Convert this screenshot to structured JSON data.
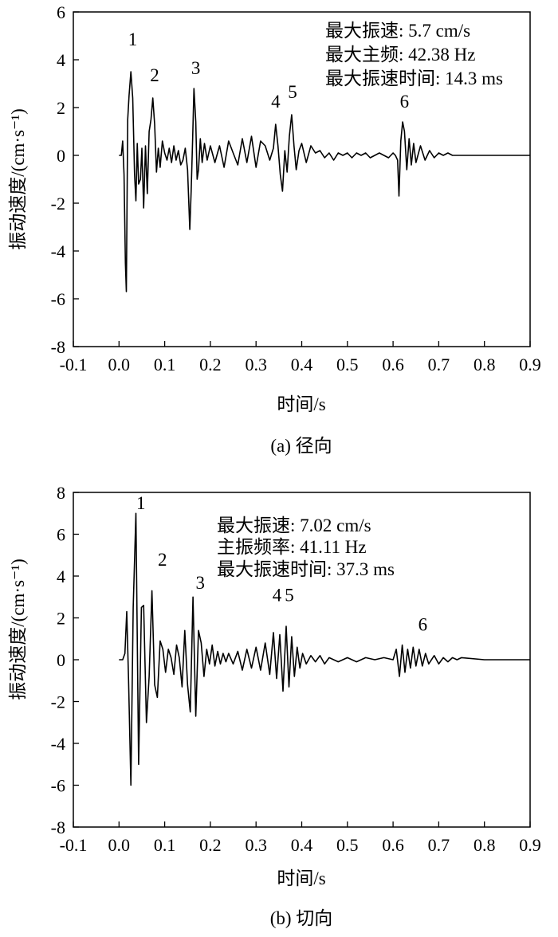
{
  "chart_data": [
    {
      "type": "line",
      "caption": "(a) 径向",
      "xlabel": "时间/s",
      "ylabel": "振动速度/(cm·s⁻¹)",
      "xlim": [
        -0.1,
        0.9
      ],
      "ylim": [
        -8,
        6
      ],
      "xticks": [
        "-0.1",
        "0.0",
        "0.1",
        "0.2",
        "0.3",
        "0.4",
        "0.5",
        "0.6",
        "0.7",
        "0.8",
        "0.9"
      ],
      "yticks": [
        "6",
        "4",
        "2",
        "0",
        "-2",
        "-4",
        "-6",
        "-8"
      ],
      "grid": false,
      "annotations": [
        "最大振速: 5.7 cm/s",
        "最大主频: 42.38 Hz",
        "最大振速时间: 14.3 ms"
      ],
      "peak_labels": [
        {
          "text": "1",
          "x": 0.03,
          "y": 4.6
        },
        {
          "text": "2",
          "x": 0.078,
          "y": 3.1
        },
        {
          "text": "3",
          "x": 0.168,
          "y": 3.4
        },
        {
          "text": "4",
          "x": 0.343,
          "y": 2.0
        },
        {
          "text": "5",
          "x": 0.38,
          "y": 2.4
        },
        {
          "text": "6",
          "x": 0.625,
          "y": 2.0
        }
      ],
      "series": [
        {
          "x": [
            0.0,
            0.005,
            0.008,
            0.011,
            0.014,
            0.016,
            0.019,
            0.022,
            0.026,
            0.03,
            0.034,
            0.037,
            0.04,
            0.043,
            0.047,
            0.05,
            0.054,
            0.058,
            0.062,
            0.066,
            0.07,
            0.074,
            0.078,
            0.082,
            0.086,
            0.09,
            0.095,
            0.1,
            0.105,
            0.11,
            0.115,
            0.12,
            0.125,
            0.13,
            0.135,
            0.14,
            0.145,
            0.15,
            0.155,
            0.158,
            0.161,
            0.164,
            0.168,
            0.171,
            0.174,
            0.178,
            0.182,
            0.187,
            0.193,
            0.2,
            0.21,
            0.22,
            0.23,
            0.24,
            0.25,
            0.26,
            0.27,
            0.28,
            0.29,
            0.3,
            0.31,
            0.32,
            0.33,
            0.338,
            0.343,
            0.348,
            0.353,
            0.358,
            0.363,
            0.368,
            0.373,
            0.378,
            0.383,
            0.388,
            0.394,
            0.4,
            0.41,
            0.42,
            0.43,
            0.44,
            0.45,
            0.46,
            0.47,
            0.48,
            0.49,
            0.5,
            0.51,
            0.52,
            0.53,
            0.54,
            0.55,
            0.56,
            0.57,
            0.58,
            0.59,
            0.6,
            0.605,
            0.61,
            0.613,
            0.617,
            0.621,
            0.625,
            0.63,
            0.635,
            0.64,
            0.645,
            0.65,
            0.66,
            0.67,
            0.68,
            0.69,
            0.7,
            0.71,
            0.72,
            0.73,
            0.74,
            0.75,
            0.8,
            0.85,
            0.9
          ],
          "values": [
            0.0,
            0.0,
            0.6,
            -0.8,
            -4.5,
            -5.7,
            1.5,
            2.5,
            3.5,
            2.4,
            -0.8,
            -1.9,
            0.5,
            -1.2,
            -1.0,
            0.3,
            -2.2,
            0.4,
            -1.6,
            1.0,
            1.5,
            2.4,
            1.3,
            -0.7,
            0.3,
            -0.5,
            0.6,
            0.1,
            -0.2,
            0.3,
            -0.3,
            0.4,
            -0.2,
            0.2,
            -0.4,
            -0.2,
            0.3,
            -0.6,
            -3.1,
            -1.5,
            0.6,
            2.8,
            1.4,
            -1.0,
            -0.6,
            0.7,
            -0.3,
            0.5,
            -0.2,
            0.4,
            -0.3,
            0.4,
            -0.5,
            0.6,
            0.1,
            -0.4,
            0.7,
            -0.3,
            0.8,
            -0.5,
            0.6,
            0.4,
            -0.2,
            0.3,
            1.3,
            0.4,
            -0.8,
            -1.5,
            0.2,
            -0.7,
            0.8,
            1.7,
            0.4,
            -0.6,
            0.2,
            0.5,
            -0.3,
            0.4,
            0.1,
            0.2,
            -0.1,
            0.1,
            -0.2,
            0.1,
            0.0,
            0.1,
            -0.1,
            0.1,
            0.0,
            0.1,
            -0.1,
            0.0,
            0.1,
            0.0,
            -0.1,
            0.1,
            0.0,
            -0.2,
            -1.7,
            0.6,
            1.4,
            1.0,
            -0.6,
            0.7,
            -0.4,
            0.5,
            -0.3,
            0.4,
            -0.2,
            0.2,
            -0.1,
            0.1,
            0.0,
            0.1,
            0.0,
            0.0,
            0.0,
            0.0,
            0.0,
            0.0
          ]
        }
      ]
    },
    {
      "type": "line",
      "caption": "(b) 切向",
      "xlabel": "时间/s",
      "ylabel": "振动速度/(cm·s⁻¹)",
      "xlim": [
        -0.1,
        0.9
      ],
      "ylim": [
        -8,
        8
      ],
      "xticks": [
        "-0.1",
        "0.0",
        "0.1",
        "0.2",
        "0.3",
        "0.4",
        "0.5",
        "0.6",
        "0.7",
        "0.8",
        "0.9"
      ],
      "yticks": [
        "8",
        "6",
        "4",
        "2",
        "0",
        "-2",
        "-4",
        "-6",
        "-8"
      ],
      "grid": false,
      "annotations": [
        "最大振速: 7.02 cm/s",
        "主振频率: 41.11 Hz",
        "最大振速时间: 37.3 ms"
      ],
      "peak_labels": [
        {
          "text": "1",
          "x": 0.048,
          "y": 7.2
        },
        {
          "text": "2",
          "x": 0.095,
          "y": 4.5
        },
        {
          "text": "3",
          "x": 0.178,
          "y": 3.4
        },
        {
          "text": "4",
          "x": 0.346,
          "y": 2.8
        },
        {
          "text": "5",
          "x": 0.373,
          "y": 2.8
        },
        {
          "text": "6",
          "x": 0.665,
          "y": 1.4
        }
      ],
      "series": [
        {
          "x": [
            0.0,
            0.008,
            0.013,
            0.017,
            0.021,
            0.026,
            0.031,
            0.037,
            0.043,
            0.049,
            0.054,
            0.06,
            0.066,
            0.072,
            0.078,
            0.084,
            0.09,
            0.096,
            0.102,
            0.108,
            0.114,
            0.12,
            0.126,
            0.132,
            0.138,
            0.144,
            0.15,
            0.156,
            0.162,
            0.168,
            0.174,
            0.18,
            0.186,
            0.192,
            0.198,
            0.204,
            0.21,
            0.216,
            0.222,
            0.228,
            0.234,
            0.24,
            0.25,
            0.26,
            0.27,
            0.28,
            0.29,
            0.3,
            0.31,
            0.32,
            0.33,
            0.338,
            0.345,
            0.352,
            0.359,
            0.366,
            0.372,
            0.378,
            0.384,
            0.39,
            0.396,
            0.402,
            0.41,
            0.42,
            0.43,
            0.44,
            0.45,
            0.46,
            0.48,
            0.5,
            0.52,
            0.54,
            0.56,
            0.58,
            0.6,
            0.607,
            0.614,
            0.62,
            0.626,
            0.632,
            0.638,
            0.644,
            0.65,
            0.657,
            0.664,
            0.671,
            0.678,
            0.69,
            0.7,
            0.71,
            0.72,
            0.73,
            0.74,
            0.75,
            0.8,
            0.85,
            0.9
          ],
          "values": [
            0.0,
            0.0,
            0.3,
            2.3,
            -1.0,
            -6.0,
            2.5,
            7.0,
            -5.0,
            2.5,
            2.6,
            -3.0,
            -0.8,
            3.3,
            -1.2,
            -1.8,
            0.9,
            0.5,
            -0.6,
            0.5,
            0.1,
            -0.7,
            0.7,
            0.1,
            -1.3,
            1.4,
            -1.2,
            -2.5,
            3.0,
            -2.7,
            1.4,
            0.8,
            -0.8,
            0.5,
            -0.2,
            0.7,
            -0.3,
            0.4,
            -0.2,
            0.3,
            -0.1,
            0.3,
            -0.2,
            0.4,
            -0.5,
            0.5,
            -0.4,
            0.6,
            -0.5,
            0.8,
            -0.7,
            1.3,
            -0.9,
            1.2,
            -1.5,
            1.6,
            -1.3,
            1.1,
            -0.8,
            0.6,
            -0.4,
            0.3,
            -0.2,
            0.2,
            -0.1,
            0.2,
            -0.2,
            0.1,
            -0.1,
            0.1,
            -0.1,
            0.1,
            0.0,
            0.1,
            0.0,
            0.5,
            -0.8,
            0.7,
            -0.6,
            0.5,
            -0.4,
            0.6,
            -0.3,
            0.5,
            -0.3,
            0.3,
            -0.2,
            0.2,
            -0.2,
            0.1,
            -0.1,
            0.1,
            0.0,
            0.1,
            0.0,
            0.0,
            0.0
          ]
        }
      ]
    }
  ]
}
